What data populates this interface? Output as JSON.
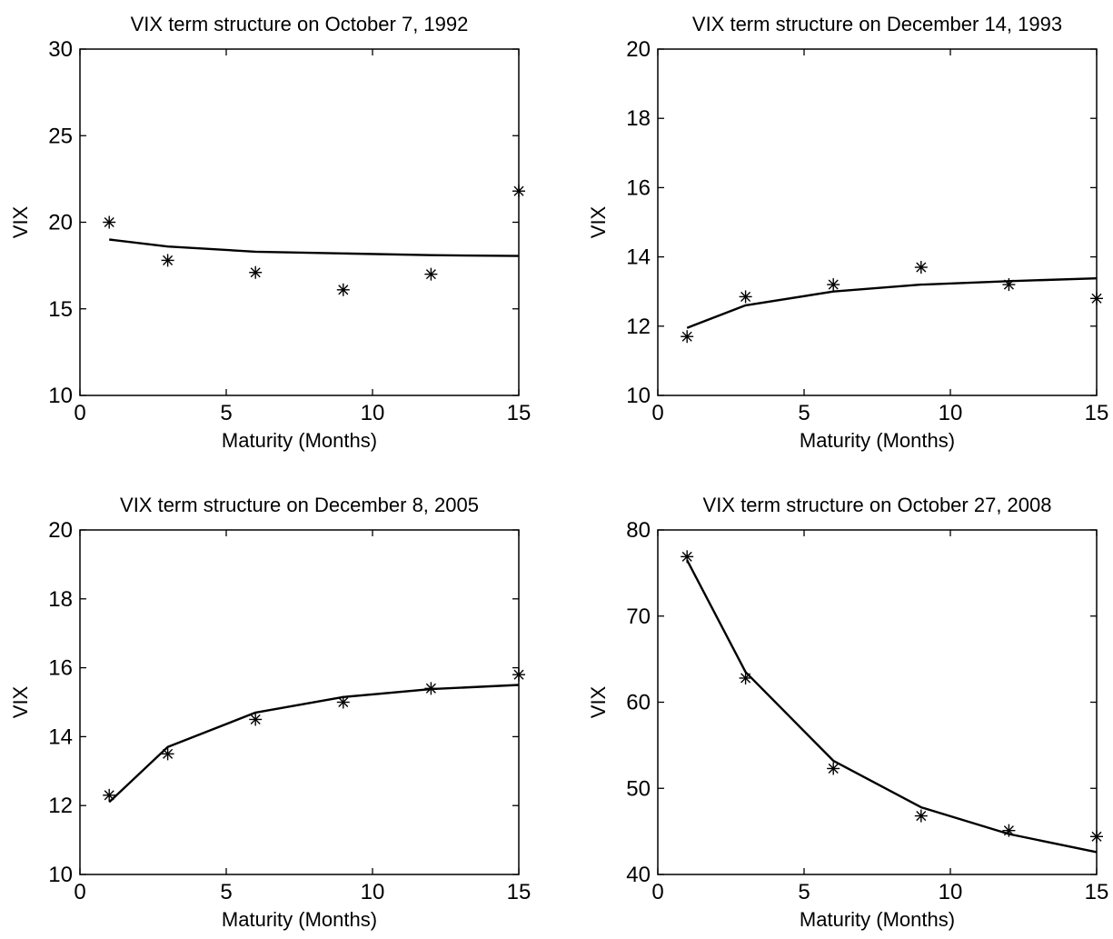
{
  "chart_data": [
    {
      "type": "line",
      "title": "VIX term structure on October 7, 1992",
      "xlabel": "Maturity (Months)",
      "ylabel": "VIX",
      "xlim": [
        0,
        15
      ],
      "ylim": [
        10,
        30
      ],
      "xticks": [
        0,
        5,
        10,
        15
      ],
      "yticks": [
        10,
        15,
        20,
        25,
        30
      ],
      "grid": false,
      "legend": "none",
      "series": [
        {
          "style": "solid-line",
          "x": [
            1,
            3,
            6,
            9,
            12,
            15
          ],
          "values": [
            19.0,
            18.6,
            18.3,
            18.2,
            18.1,
            18.05
          ]
        },
        {
          "style": "asterisk-markers",
          "x": [
            1,
            3,
            6,
            9,
            12,
            15
          ],
          "values": [
            20.0,
            17.8,
            17.1,
            16.1,
            17.0,
            21.8
          ]
        }
      ]
    },
    {
      "type": "line",
      "title": "VIX term structure on December 14, 1993",
      "xlabel": "Maturity (Months)",
      "ylabel": "VIX",
      "xlim": [
        0,
        15
      ],
      "ylim": [
        10,
        20
      ],
      "xticks": [
        0,
        5,
        10,
        15
      ],
      "yticks": [
        10,
        12,
        14,
        16,
        18,
        20
      ],
      "grid": false,
      "legend": "none",
      "series": [
        {
          "style": "solid-line",
          "x": [
            1,
            3,
            6,
            9,
            12,
            15
          ],
          "values": [
            11.95,
            12.6,
            13.0,
            13.2,
            13.3,
            13.38
          ]
        },
        {
          "style": "asterisk-markers",
          "x": [
            1,
            3,
            6,
            9,
            12,
            15
          ],
          "values": [
            11.7,
            12.85,
            13.2,
            13.7,
            13.2,
            12.8
          ]
        }
      ]
    },
    {
      "type": "line",
      "title": "VIX term structure on December 8, 2005",
      "xlabel": "Maturity (Months)",
      "ylabel": "VIX",
      "xlim": [
        0,
        15
      ],
      "ylim": [
        10,
        20
      ],
      "xticks": [
        0,
        5,
        10,
        15
      ],
      "yticks": [
        10,
        12,
        14,
        16,
        18,
        20
      ],
      "grid": false,
      "legend": "none",
      "series": [
        {
          "style": "solid-line",
          "x": [
            1,
            3,
            6,
            9,
            12,
            15
          ],
          "values": [
            12.1,
            13.7,
            14.7,
            15.15,
            15.38,
            15.5
          ]
        },
        {
          "style": "asterisk-markers",
          "x": [
            1,
            3,
            6,
            9,
            12,
            15
          ],
          "values": [
            12.3,
            13.5,
            14.5,
            15.0,
            15.4,
            15.8
          ]
        }
      ]
    },
    {
      "type": "line",
      "title": "VIX term structure on October 27, 2008",
      "xlabel": "Maturity (Months)",
      "ylabel": "VIX",
      "xlim": [
        0,
        15
      ],
      "ylim": [
        40,
        80
      ],
      "xticks": [
        0,
        5,
        10,
        15
      ],
      "yticks": [
        40,
        50,
        60,
        70,
        80
      ],
      "grid": false,
      "legend": "none",
      "series": [
        {
          "style": "solid-line",
          "x": [
            1,
            3,
            6,
            9,
            12,
            15
          ],
          "values": [
            76.5,
            63.5,
            53.2,
            47.8,
            44.7,
            42.6
          ]
        },
        {
          "style": "asterisk-markers",
          "x": [
            1,
            3,
            6,
            9,
            12,
            15
          ],
          "values": [
            76.9,
            62.8,
            52.3,
            46.8,
            45.1,
            44.4
          ]
        }
      ]
    }
  ]
}
